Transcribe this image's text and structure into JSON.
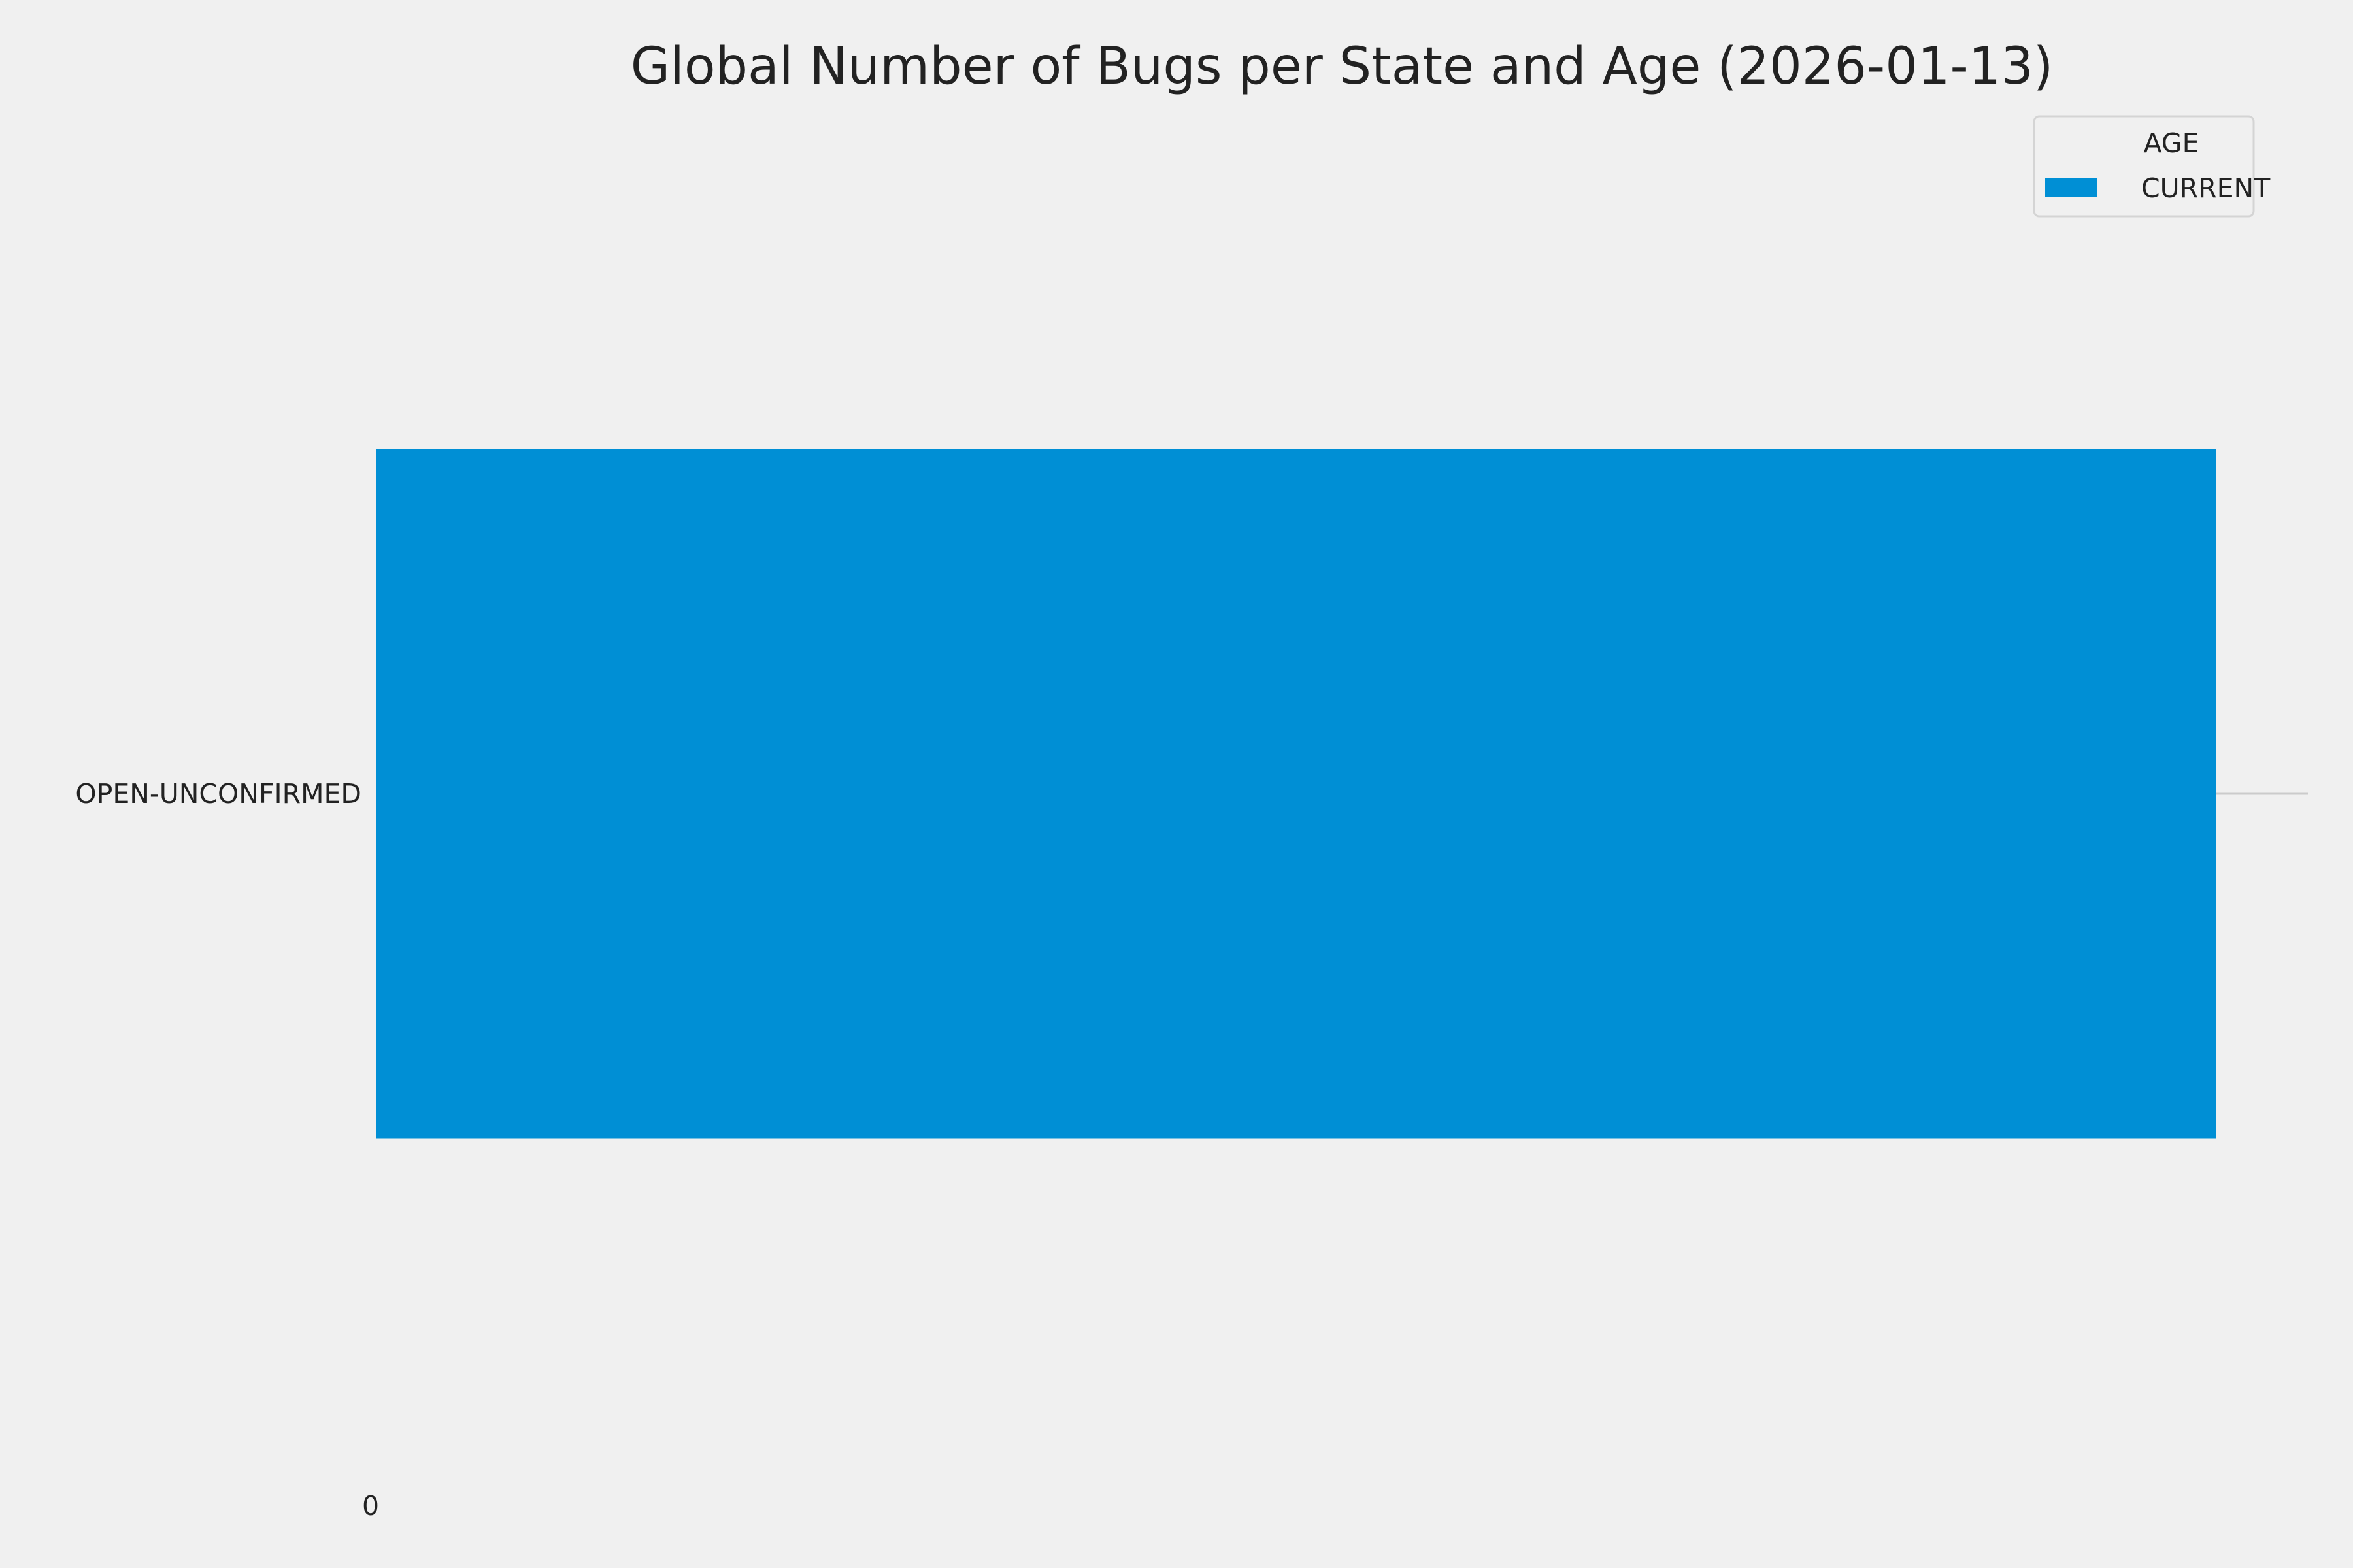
{
  "chart_data": {
    "type": "bar",
    "orientation": "horizontal",
    "title": "Global Number of Bugs per State and Age (2026-01-13)",
    "categories": [
      "OPEN-UNCONFIRMED"
    ],
    "series": [
      {
        "name": "CURRENT",
        "values": [
          1
        ],
        "color": "#008fd5"
      }
    ],
    "xlabel": "",
    "ylabel": "",
    "xlim": [
      0,
      1.05
    ],
    "x_tick_labels": [
      "0"
    ],
    "x_ticks": [
      0
    ],
    "grid": true,
    "legend": {
      "title": "AGE",
      "placement": "top-right"
    },
    "background": "#f0f0f0",
    "grid_color": "#cbcbcb"
  }
}
